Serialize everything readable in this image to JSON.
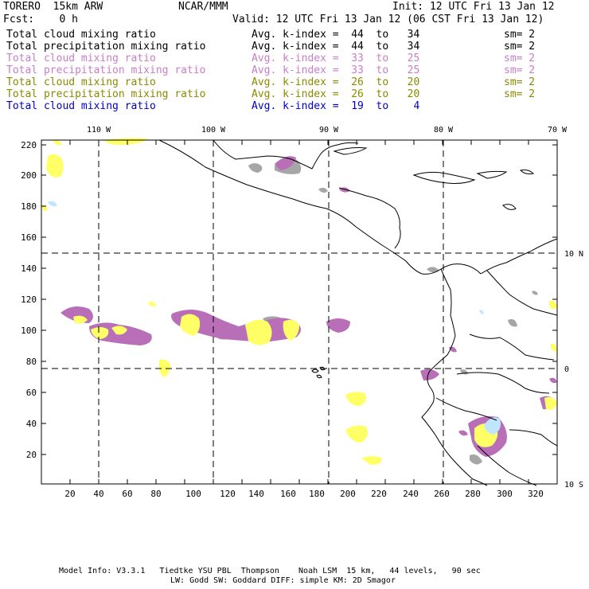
{
  "header": {
    "model": "TORERO  15km ARW",
    "org": "NCAR/MMM",
    "init": "Init: 12 UTC Fri 13 Jan 12",
    "fcst": "Fcst:    0 h",
    "valid": "Valid: 12 UTC Fri 13 Jan 12 (06 CST Fri 13 Jan 12)"
  },
  "legend": [
    {
      "field": "Total cloud mixing ratio",
      "index": "Avg. k-index =  44  to   34",
      "sm": "sm= 2",
      "color": "#000000"
    },
    {
      "field": "Total precipitation mixing ratio",
      "index": "Avg. k-index =  44  to   34",
      "sm": "sm= 2",
      "color": "#000000"
    },
    {
      "field": "Total cloud mixing ratio",
      "index": "Avg. k-index =  33  to   25",
      "sm": "sm= 2",
      "color": "#c77fc7"
    },
    {
      "field": "Total precipitation mixing ratio",
      "index": "Avg. k-index =  33  to   25",
      "sm": "sm= 2",
      "color": "#c77fc7"
    },
    {
      "field": "Total cloud mixing ratio",
      "index": "Avg. k-index =  26  to   20",
      "sm": "sm= 2",
      "color": "#8a8a00"
    },
    {
      "field": "Total precipitation mixing ratio",
      "index": "Avg. k-index =  26  to   20",
      "sm": "sm= 2",
      "color": "#8a8a00"
    },
    {
      "field": "Total cloud mixing ratio",
      "index": "Avg. k-index =  19  to    4",
      "sm": "",
      "color": "#0000cc"
    }
  ],
  "map": {
    "lon_labels": [
      "110 W",
      "100 W",
      "90 W",
      "80 W",
      "70 W"
    ],
    "lat_labels": [
      "10 N",
      "0",
      "10 S"
    ],
    "y_ticks": [
      "220",
      "200",
      "180",
      "160",
      "140",
      "120",
      "100",
      "80",
      "60",
      "40",
      "20"
    ],
    "x_ticks": [
      "20",
      "40",
      "60",
      "80",
      "100",
      "120",
      "140",
      "160",
      "180",
      "200",
      "220",
      "240",
      "260",
      "280",
      "300",
      "320"
    ],
    "colors": {
      "cloud_gray": "#a6a6a6",
      "purple": "#b86fb8",
      "yellow": "#ffff66",
      "light_blue": "#bfe6ff",
      "coast": "#000000"
    }
  },
  "footer": {
    "line1": "Model Info: V3.3.1   Tiedtke YSU PBL  Thompson    Noah LSM  15 km,   44 levels,   90 sec",
    "line2": "LW: Godd SW: Goddard DIFF: simple KM: 2D Smagor"
  }
}
